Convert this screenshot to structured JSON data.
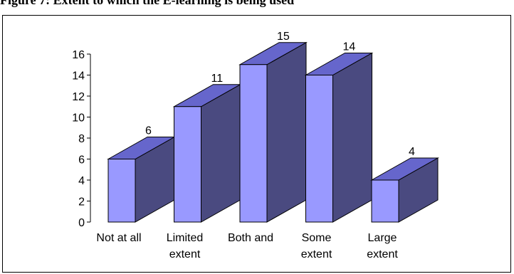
{
  "page_title": "Figure 7: Extent to which the E-learning is being used",
  "chart_data": {
    "type": "bar",
    "style": "3d",
    "categories": [
      [
        "Not at all"
      ],
      [
        "Limited",
        "extent"
      ],
      [
        "Both and"
      ],
      [
        "Some",
        "extent"
      ],
      [
        "Large",
        "extent"
      ]
    ],
    "values": [
      6,
      11,
      15,
      14,
      4
    ],
    "data_labels": [
      "6",
      "11",
      "15",
      "14",
      "4"
    ],
    "y_ticks": [
      0,
      2,
      4,
      6,
      8,
      10,
      12,
      14,
      16
    ],
    "ylim": [
      0,
      16
    ],
    "grid": false,
    "legend": false,
    "colors": {
      "front": "#9999ff",
      "top": "#6666cc",
      "side": "#4a4a80",
      "stroke": "#000000"
    }
  }
}
